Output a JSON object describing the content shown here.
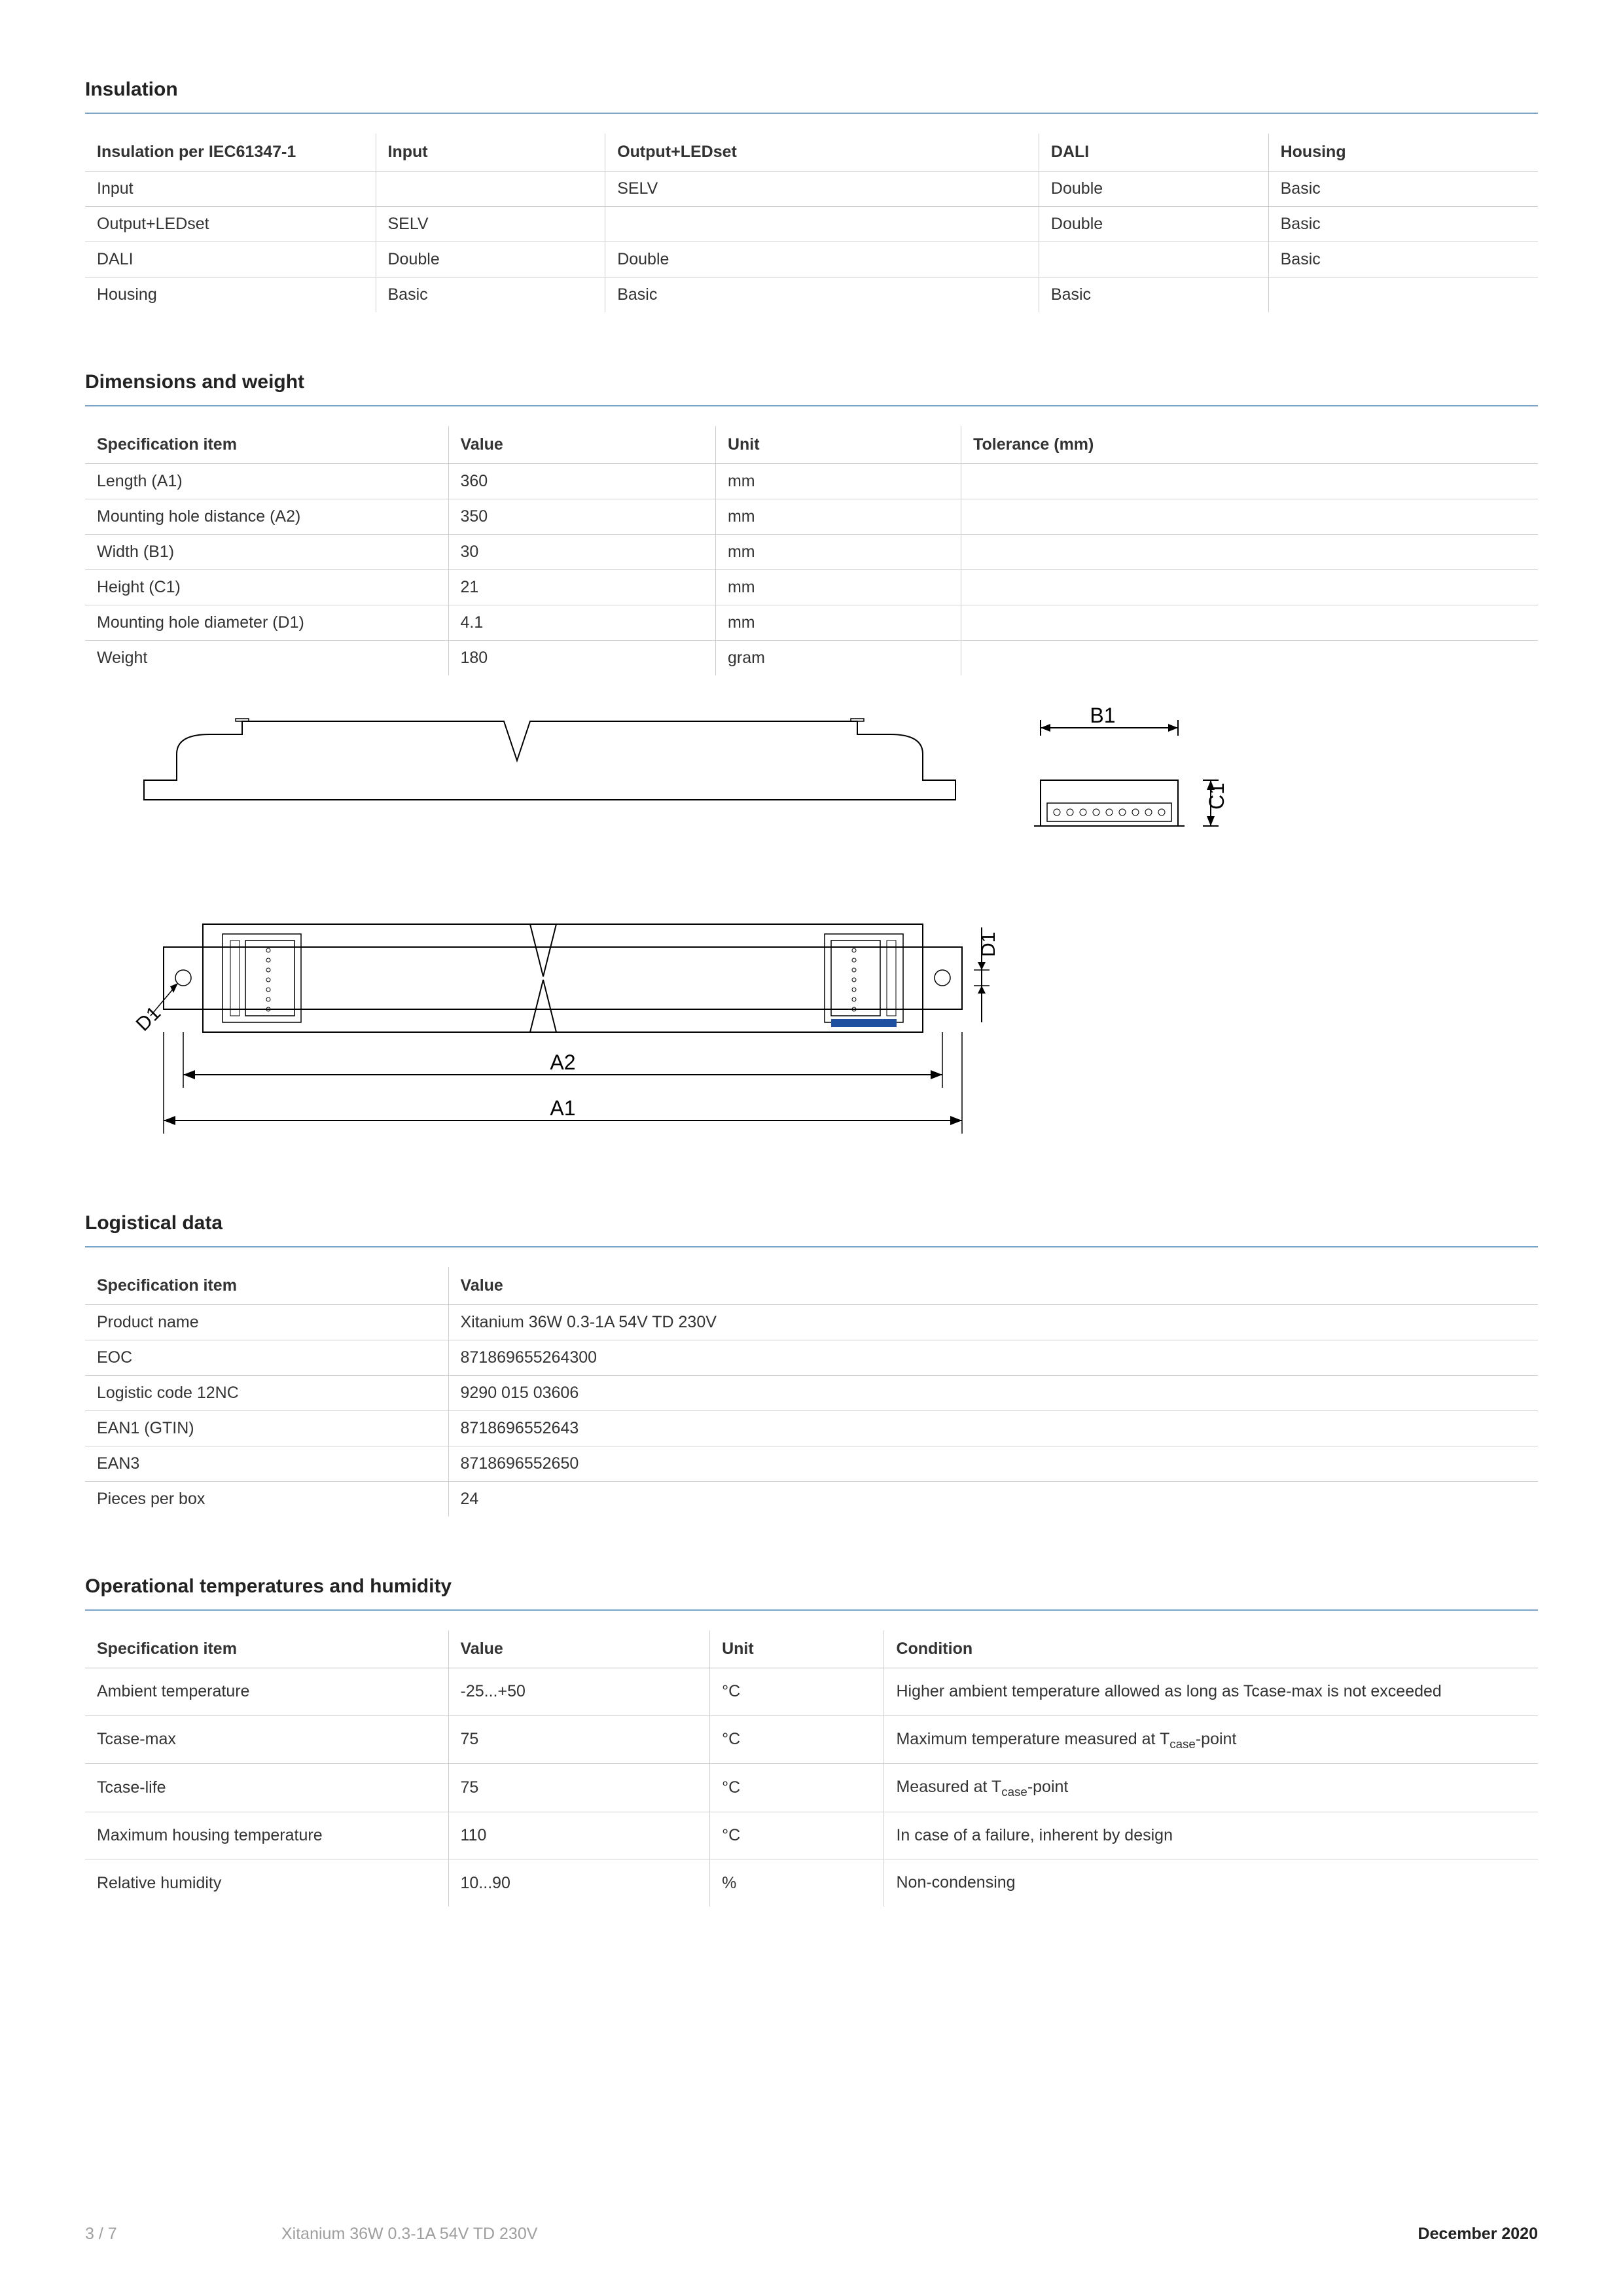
{
  "sections": {
    "insulation": {
      "title": "Insulation",
      "columns": [
        "Insulation per IEC61347-1",
        "Input",
        "Output+LEDset",
        "DALI",
        "Housing"
      ],
      "rows": [
        [
          "Input",
          "",
          "SELV",
          "Double",
          "Basic"
        ],
        [
          "Output+LEDset",
          "SELV",
          "",
          "Double",
          "Basic"
        ],
        [
          "DALI",
          "Double",
          "Double",
          "",
          "Basic"
        ],
        [
          "Housing",
          "Basic",
          "Basic",
          "Basic",
          ""
        ]
      ]
    },
    "dimensions": {
      "title": "Dimensions and weight",
      "columns": [
        "Specification item",
        "Value",
        "Unit",
        "Tolerance (mm)"
      ],
      "rows": [
        [
          "Length (A1)",
          "360",
          "mm",
          ""
        ],
        [
          "Mounting hole distance (A2)",
          "350",
          "mm",
          ""
        ],
        [
          "Width (B1)",
          "30",
          "mm",
          ""
        ],
        [
          "Height (C1)",
          "21",
          "mm",
          ""
        ],
        [
          "Mounting hole diameter (D1)",
          "4.1",
          "mm",
          ""
        ],
        [
          "Weight",
          "180",
          "gram",
          ""
        ]
      ]
    },
    "logistical": {
      "title": "Logistical data",
      "columns": [
        "Specification item",
        "Value"
      ],
      "rows": [
        [
          "Product name",
          "Xitanium 36W 0.3-1A 54V TD 230V"
        ],
        [
          "EOC",
          "871869655264300"
        ],
        [
          "Logistic code 12NC",
          "9290 015 03606"
        ],
        [
          "EAN1 (GTIN)",
          "8718696552643"
        ],
        [
          "EAN3",
          "8718696552650"
        ],
        [
          "Pieces per box",
          "24"
        ]
      ]
    },
    "operational": {
      "title": "Operational temperatures and humidity",
      "columns": [
        "Specification item",
        "Value",
        "Unit",
        "Condition"
      ],
      "rows": [
        [
          "Ambient temperature",
          "-25...+50",
          "°C",
          "Higher ambient temperature allowed as long as Tcase-max is not exceeded"
        ],
        [
          "Tcase-max",
          "75",
          "°C",
          "Maximum temperature measured at T|case|-point"
        ],
        [
          "Tcase-life",
          "75",
          "°C",
          "Measured at T|case|-point"
        ],
        [
          "Maximum housing temperature",
          "110",
          "°C",
          "In case of a failure, inherent by design"
        ],
        [
          "Relative humidity",
          "10...90",
          "%",
          "Non-condensing"
        ]
      ]
    }
  },
  "diagram": {
    "labels": {
      "A1": "A1",
      "A2": "A2",
      "B1": "B1",
      "C1": "C1",
      "D1": "D1"
    },
    "stroke": "#000000",
    "fill": "#ffffff",
    "accent": "#1e50a0",
    "label_fontsize": 32
  },
  "footer": {
    "page": "3 / 7",
    "product": "Xitanium 36W 0.3-1A 54V TD 230V",
    "date": "December 2020"
  }
}
